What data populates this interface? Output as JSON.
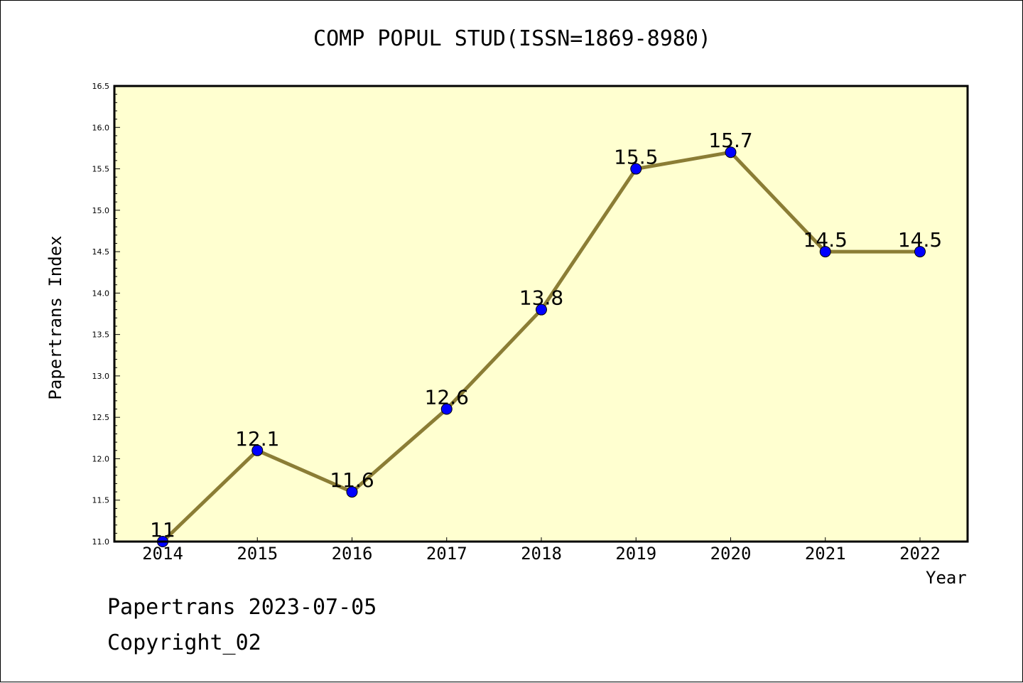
{
  "chart_data": {
    "type": "line",
    "title": "COMP POPUL STUD(ISSN=1869-8980)",
    "xlabel": "Year",
    "ylabel": "Papertrans Index",
    "categories": [
      "2014",
      "2015",
      "2016",
      "2017",
      "2018",
      "2019",
      "2020",
      "2021",
      "2022"
    ],
    "series": [
      {
        "values": [
          11,
          12.1,
          11.6,
          12.6,
          13.8,
          15.5,
          15.7,
          14.5,
          14.5
        ],
        "labels": [
          "11",
          "12.1",
          "11.6",
          "12.6",
          "13.8",
          "15.5",
          "15.7",
          "14.5",
          "14.5"
        ],
        "line_color": "#8b7d35",
        "marker_color": "#0000ff"
      }
    ],
    "ylim": [
      11.0,
      16.5
    ],
    "yticks": [
      "11.0",
      "11.5",
      "12.0",
      "12.5",
      "13.0",
      "13.5",
      "14.0",
      "14.5",
      "15.0",
      "15.5",
      "16.0",
      "16.5"
    ],
    "plot_background": "#ffffd0",
    "grid": false
  },
  "footer": {
    "line1": "Papertrans 2023-07-05",
    "line2": "Copyright_02"
  }
}
